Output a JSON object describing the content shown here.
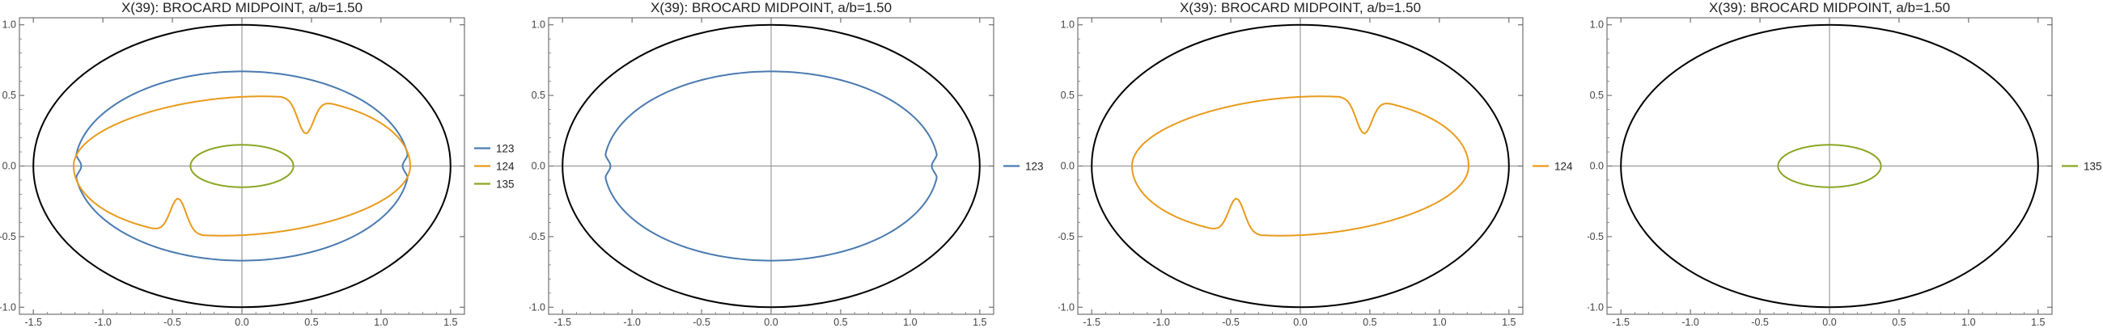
{
  "chart_data": [
    {
      "type": "line",
      "title": "X(39): BROCARD MIDPOINT, a/b=1.50",
      "xlim": [
        -1.6,
        1.6
      ],
      "ylim": [
        -1.05,
        1.05
      ],
      "xticks": [
        "-1.5",
        "-1.0",
        "-0.5",
        "0.0",
        "0.5",
        "1.0",
        "1.5"
      ],
      "yticks": [
        "-1.0",
        "-0.5",
        "0.0",
        "0.5",
        "1.0"
      ],
      "grid": false,
      "legend": "right",
      "outer_ellipse": {
        "a": 1.5,
        "b": 1.0,
        "color": "#000000"
      },
      "series": [
        {
          "name": "123",
          "color": "#4a7ab0",
          "a": 1.2,
          "b": 0.67,
          "dent_x": 1.155
        },
        {
          "name": "124",
          "color": "#e89b1c",
          "a": 1.21,
          "b": 0.49,
          "notch": [
            0.46,
            0.23
          ]
        },
        {
          "name": "135",
          "color": "#8aa623",
          "a": 0.37,
          "b": 0.15
        }
      ]
    },
    {
      "type": "line",
      "title": "X(39): BROCARD MIDPOINT, a/b=1.50",
      "xlim": [
        -1.6,
        1.6
      ],
      "ylim": [
        -1.05,
        1.05
      ],
      "xticks": [
        "-1.5",
        "-1.0",
        "-0.5",
        "0.0",
        "0.5",
        "1.0",
        "1.5"
      ],
      "yticks": [
        "-1.0",
        "-0.5",
        "0.0",
        "0.5",
        "1.0"
      ],
      "grid": false,
      "legend": "right",
      "outer_ellipse": {
        "a": 1.5,
        "b": 1.0,
        "color": "#000000"
      },
      "series": [
        {
          "name": "123",
          "color": "#4a7ab0",
          "a": 1.2,
          "b": 0.67,
          "dent_x": 1.155
        }
      ]
    },
    {
      "type": "line",
      "title": "X(39): BROCARD MIDPOINT, a/b=1.50",
      "xlim": [
        -1.6,
        1.6
      ],
      "ylim": [
        -1.05,
        1.05
      ],
      "xticks": [
        "-1.5",
        "-1.0",
        "-0.5",
        "0.0",
        "0.5",
        "1.0",
        "1.5"
      ],
      "yticks": [
        "-1.0",
        "-0.5",
        "0.0",
        "0.5",
        "1.0"
      ],
      "grid": false,
      "legend": "right",
      "outer_ellipse": {
        "a": 1.5,
        "b": 1.0,
        "color": "#000000"
      },
      "series": [
        {
          "name": "124",
          "color": "#e89b1c",
          "a": 1.21,
          "b": 0.49,
          "notch": [
            0.46,
            0.23
          ]
        }
      ]
    },
    {
      "type": "line",
      "title": "X(39): BROCARD MIDPOINT, a/b=1.50",
      "xlim": [
        -1.6,
        1.6
      ],
      "ylim": [
        -1.05,
        1.05
      ],
      "xticks": [
        "-1.5",
        "-1.0",
        "-0.5",
        "0.0",
        "0.5",
        "1.0",
        "1.5"
      ],
      "yticks": [
        "-1.0",
        "-0.5",
        "0.0",
        "0.5",
        "1.0"
      ],
      "grid": false,
      "legend": "right",
      "outer_ellipse": {
        "a": 1.5,
        "b": 1.0,
        "color": "#000000"
      },
      "series": [
        {
          "name": "135",
          "color": "#8aa623",
          "a": 0.37,
          "b": 0.15
        }
      ]
    }
  ]
}
